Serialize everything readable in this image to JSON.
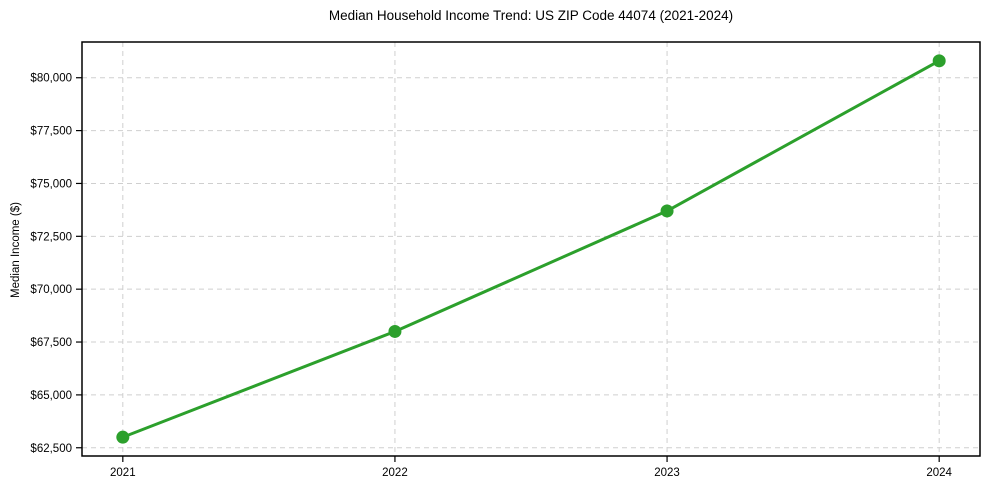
{
  "chart_data": {
    "type": "line",
    "title": "Median Household Income Trend: US ZIP Code 44074 (2021-2024)",
    "xlabel": "",
    "ylabel": "Median Income ($)",
    "x": [
      2021,
      2022,
      2023,
      2024
    ],
    "values": [
      63000,
      68000,
      73700,
      80800
    ],
    "xtick_labels": [
      "2021",
      "2022",
      "2023",
      "2024"
    ],
    "ytick_values": [
      62500,
      65000,
      67500,
      70000,
      72500,
      75000,
      77500,
      80000
    ],
    "ytick_labels": [
      "$62,500",
      "$65,000",
      "$67,500",
      "$70,000",
      "$72,500",
      "$75,000",
      "$77,500",
      "$80,000"
    ],
    "xlim": [
      2020.85,
      2024.15
    ],
    "ylim": [
      62110,
      81690
    ],
    "grid": true,
    "grid_style": "dashed",
    "legend": false,
    "colors": {
      "line": "#2ca02c",
      "marker": "#2ca02c",
      "grid": "#cfcfcf",
      "axis": "#000000",
      "text": "#000000",
      "background": "#ffffff"
    }
  }
}
